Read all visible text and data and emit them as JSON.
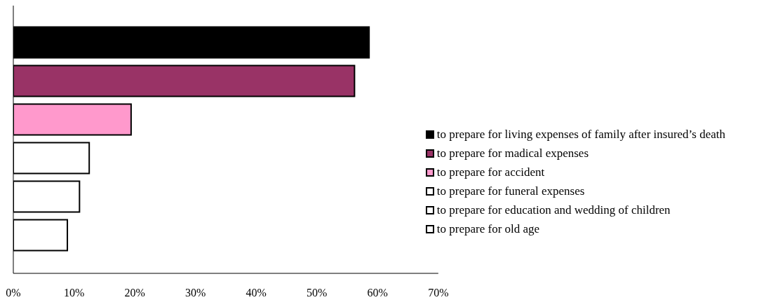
{
  "chart_data": {
    "type": "bar",
    "orientation": "horizontal",
    "categories": [
      null
    ],
    "series": [
      {
        "name": "to prepare for living expenses of  family after insured’s death",
        "color": "#000000",
        "values": [
          58.6
        ]
      },
      {
        "name": "to prepare for madical expenses",
        "color": "#993366",
        "values": [
          56.2
        ]
      },
      {
        "name": "to prepare for accident",
        "color": "#ff99cc",
        "values": [
          19.4
        ]
      },
      {
        "name": "to prepare for funeral expenses",
        "color": "#ffffff",
        "values": [
          12.5
        ]
      },
      {
        "name": "to prepare for education and wedding of children",
        "color": "#ffffff",
        "values": [
          10.9
        ]
      },
      {
        "name": "to prepare for old age",
        "color": "#ffffff",
        "values": [
          8.9
        ]
      }
    ],
    "xlim": [
      0,
      70
    ],
    "xticks": [
      {
        "value": 0,
        "label": "0%"
      },
      {
        "value": 10,
        "label": "10%"
      },
      {
        "value": 20,
        "label": "20%"
      },
      {
        "value": 30,
        "label": "30%"
      },
      {
        "value": 40,
        "label": "40%"
      },
      {
        "value": 50,
        "label": "50%"
      },
      {
        "value": 60,
        "label": "60%"
      },
      {
        "value": 70,
        "label": "70%"
      }
    ],
    "grid": false,
    "legend": "right"
  }
}
